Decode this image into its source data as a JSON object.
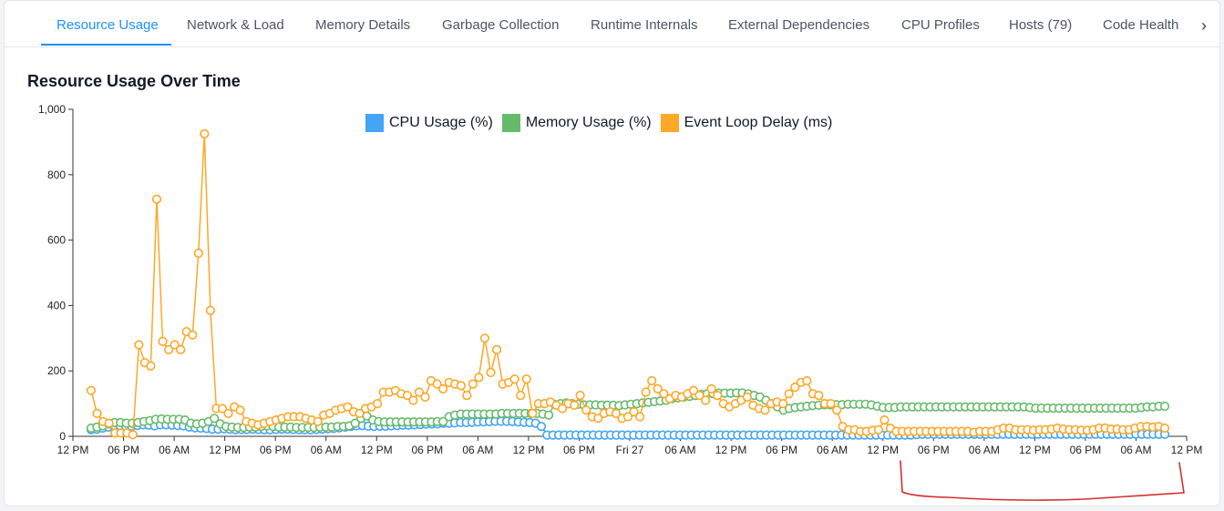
{
  "tabs": [
    {
      "label": "Resource Usage",
      "active": true
    },
    {
      "label": "Network & Load"
    },
    {
      "label": "Memory Details"
    },
    {
      "label": "Garbage Collection"
    },
    {
      "label": "Runtime Internals"
    },
    {
      "label": "External Dependencies"
    },
    {
      "label": "CPU Profiles"
    },
    {
      "label": "Hosts (79)"
    },
    {
      "label": "Code Health"
    }
  ],
  "tabs_more_icon": "chevron-right-icon",
  "chart": {
    "title": "Resource Usage Over Time"
  },
  "colors": {
    "accent": "#1e90ff",
    "cpu": "#42a5f5",
    "memory": "#66bb6a",
    "event_loop": "#ffa726",
    "annotation": "#d32f2f"
  },
  "chart_data": {
    "type": "line",
    "title": "Resource Usage Over Time",
    "xlabel": "",
    "ylabel": "",
    "ylim": [
      0,
      1000
    ],
    "y_ticks": [
      "0",
      "200",
      "400",
      "600",
      "800",
      "1,000"
    ],
    "x_ticks": [
      "12 PM",
      "06 PM",
      "06 AM",
      "12 PM",
      "06 PM",
      "06 AM",
      "12 PM",
      "06 PM",
      "06 AM",
      "12 PM",
      "06 PM",
      "Fri 27",
      "06 AM",
      "12 PM",
      "06 PM",
      "06 AM",
      "12 PM",
      "06 PM",
      "06 AM",
      "12 PM",
      "06 PM",
      "06 AM",
      "12 PM"
    ],
    "grid": false,
    "legend_position": "top-center",
    "series": [
      {
        "name": "CPU Usage (%)",
        "values": [
          20,
          22,
          25,
          28,
          30,
          32,
          30,
          31,
          33,
          35,
          34,
          32,
          35,
          35,
          34,
          33,
          32,
          28,
          26,
          25,
          24,
          22,
          22,
          23,
          22,
          20,
          21,
          21,
          22,
          21,
          20,
          20,
          21,
          22,
          22,
          21,
          20,
          20,
          20,
          21,
          22,
          23,
          24,
          26,
          28,
          30,
          32,
          33,
          31,
          30,
          31,
          31,
          32,
          33,
          34,
          34,
          35,
          36,
          37,
          38,
          38,
          40,
          40,
          41,
          42,
          42,
          43,
          44,
          44,
          45,
          46,
          46,
          46,
          45,
          44,
          43,
          42,
          40,
          30,
          4,
          4,
          4,
          4,
          4,
          4,
          4,
          4,
          4,
          4,
          4,
          4,
          4,
          4,
          4,
          4,
          4,
          4,
          4,
          4,
          4,
          4,
          4,
          4,
          4,
          4,
          4,
          4,
          4,
          4,
          4,
          4,
          4,
          4,
          4,
          4,
          4,
          4,
          4,
          4,
          4,
          4,
          4,
          4,
          4,
          4,
          4,
          4,
          4,
          4,
          4,
          4,
          4,
          4,
          4,
          4,
          4,
          4,
          4,
          4,
          4,
          4,
          4,
          4,
          5,
          6,
          6,
          6,
          6,
          6,
          6,
          6,
          6,
          6,
          6,
          6,
          6,
          6,
          6,
          6,
          6,
          6,
          6,
          6,
          6,
          6,
          6,
          6,
          6,
          6,
          6,
          6,
          6,
          6,
          6,
          6,
          6,
          6,
          6,
          6,
          6,
          6,
          6,
          6,
          6,
          6,
          6,
          6
        ]
      },
      {
        "name": "Memory Usage (%)",
        "values": [
          25,
          28,
          32,
          38,
          42,
          42,
          40,
          40,
          42,
          45,
          48,
          52,
          53,
          52,
          52,
          52,
          50,
          40,
          38,
          40,
          45,
          55,
          38,
          30,
          28,
          27,
          27,
          28,
          28,
          30,
          32,
          30,
          28,
          28,
          28,
          27,
          27,
          27,
          27,
          28,
          28,
          28,
          30,
          30,
          32,
          40,
          55,
          62,
          50,
          45,
          44,
          44,
          44,
          44,
          44,
          44,
          44,
          44,
          44,
          45,
          45,
          60,
          65,
          68,
          68,
          68,
          68,
          68,
          68,
          68,
          70,
          70,
          70,
          70,
          70,
          70,
          70,
          68,
          65,
          98,
          100,
          102,
          100,
          98,
          96,
          96,
          96,
          95,
          95,
          95,
          94,
          96,
          98,
          100,
          102,
          104,
          106,
          108,
          110,
          115,
          118,
          120,
          122,
          125,
          128,
          130,
          130,
          132,
          132,
          132,
          133,
          133,
          130,
          125,
          120,
          110,
          100,
          90,
          80,
          85,
          88,
          90,
          92,
          94,
          95,
          96,
          96,
          97,
          97,
          98,
          98,
          98,
          98,
          96,
          92,
          88,
          88,
          88,
          90,
          90,
          90,
          90,
          90,
          90,
          90,
          90,
          90,
          90,
          90,
          90,
          90,
          90,
          90,
          90,
          90,
          90,
          90,
          90,
          90,
          90,
          88,
          86,
          86,
          86,
          86,
          86,
          86,
          86,
          86,
          86,
          86,
          86,
          86,
          86,
          86,
          86,
          86,
          86,
          86,
          88,
          90,
          90,
          92,
          92
        ]
      },
      {
        "name": "Event Loop Delay (ms)",
        "values": [
          140,
          70,
          45,
          40,
          10,
          10,
          10,
          5,
          280,
          225,
          215,
          725,
          290,
          265,
          280,
          265,
          320,
          310,
          560,
          925,
          385,
          85,
          85,
          70,
          90,
          80,
          45,
          40,
          35,
          40,
          45,
          50,
          55,
          60,
          60,
          60,
          55,
          50,
          45,
          65,
          70,
          80,
          85,
          90,
          75,
          70,
          85,
          90,
          100,
          135,
          135,
          140,
          130,
          125,
          110,
          135,
          120,
          170,
          160,
          145,
          165,
          160,
          155,
          125,
          160,
          180,
          300,
          195,
          265,
          160,
          165,
          175,
          125,
          175,
          70,
          100,
          100,
          105,
          95,
          85,
          100,
          95,
          125,
          80,
          60,
          55,
          70,
          75,
          70,
          55,
          60,
          75,
          60,
          135,
          170,
          145,
          130,
          115,
          125,
          120,
          130,
          140,
          125,
          110,
          145,
          125,
          100,
          90,
          100,
          110,
          120,
          95,
          85,
          80,
          100,
          105,
          100,
          130,
          150,
          165,
          170,
          130,
          125,
          100,
          100,
          80,
          30,
          20,
          20,
          15,
          15,
          18,
          20,
          50,
          25,
          15,
          15,
          15,
          15,
          15,
          15,
          15,
          15,
          15,
          15,
          15,
          15,
          15,
          12,
          15,
          15,
          15,
          20,
          25,
          25,
          20,
          20,
          20,
          18,
          20,
          20,
          22,
          25,
          22,
          20,
          20,
          18,
          18,
          20,
          25,
          25,
          22,
          22,
          20,
          20,
          25,
          30,
          30,
          28,
          30,
          25
        ]
      }
    ]
  }
}
